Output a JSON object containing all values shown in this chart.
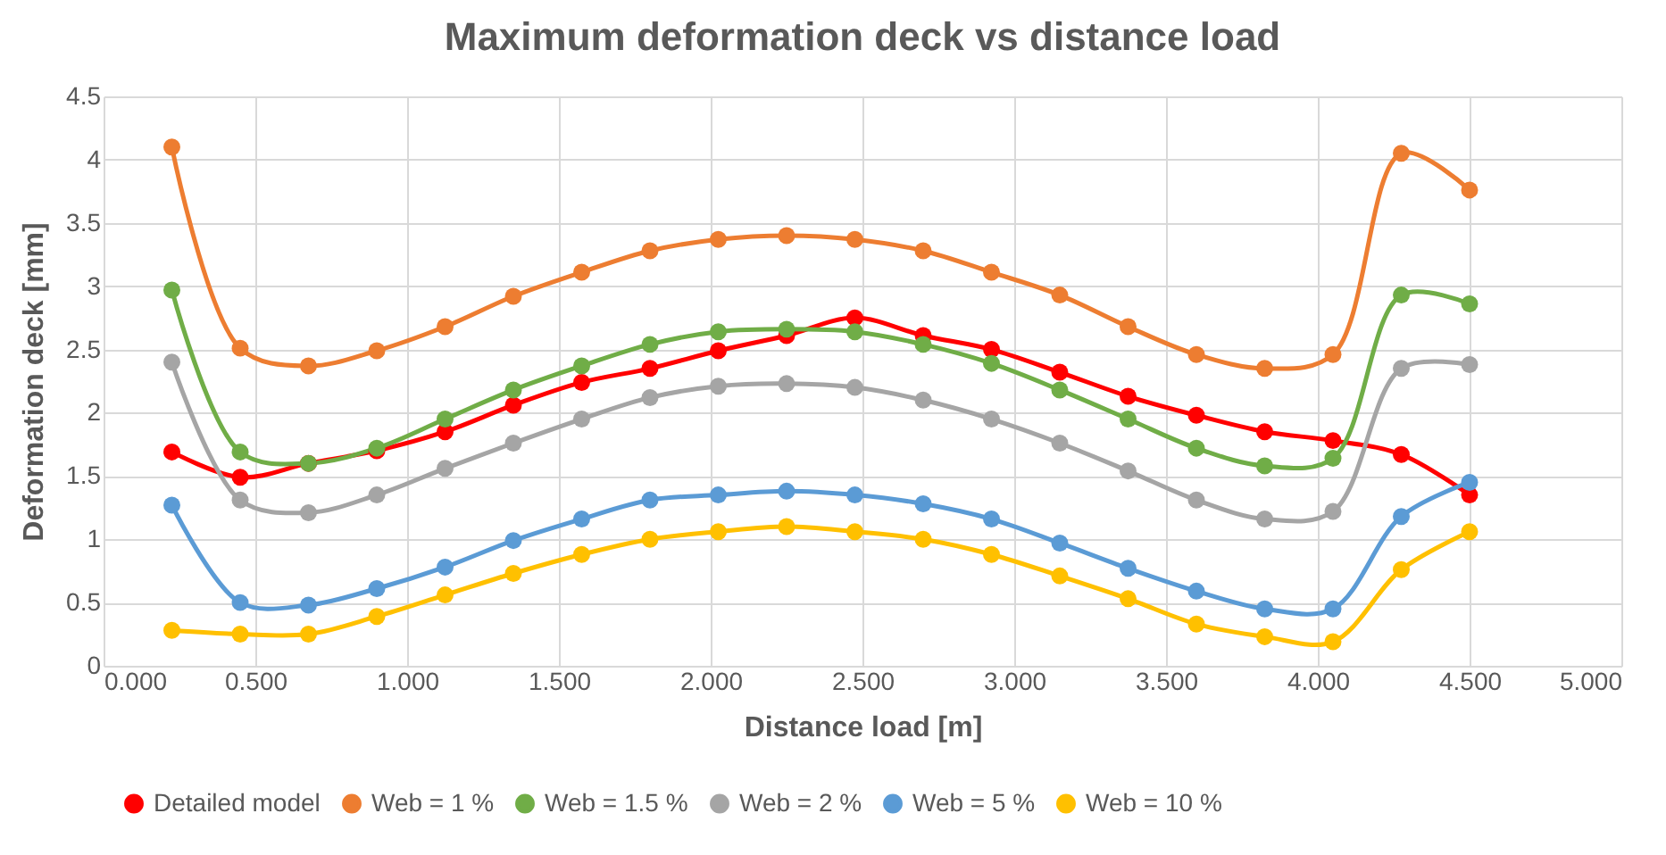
{
  "chart_data": {
    "type": "line",
    "title": "Maximum deformation deck vs distance load",
    "xlabel": "Distance load [m]",
    "ylabel": "Deformation deck [mm]",
    "x": [
      0.225,
      0.45,
      0.675,
      0.9,
      1.125,
      1.35,
      1.575,
      1.8,
      2.025,
      2.25,
      2.475,
      2.7,
      2.925,
      3.15,
      3.375,
      3.6,
      3.825,
      4.05,
      4.275,
      4.5
    ],
    "series": [
      {
        "name": "Detailed model",
        "color": "#ff0000",
        "values": [
          1.69,
          1.49,
          1.6,
          1.7,
          1.85,
          2.06,
          2.24,
          2.35,
          2.49,
          2.61,
          2.75,
          2.61,
          2.5,
          2.32,
          2.13,
          1.98,
          1.85,
          1.78,
          1.67,
          1.35
        ]
      },
      {
        "name": "Web = 1 %",
        "color": "#ed7d31",
        "values": [
          4.1,
          2.51,
          2.37,
          2.49,
          2.68,
          2.92,
          3.11,
          3.28,
          3.37,
          3.4,
          3.37,
          3.28,
          3.11,
          2.93,
          2.68,
          2.46,
          2.35,
          2.46,
          4.05,
          3.76
        ]
      },
      {
        "name": "Web = 1.5 %",
        "color": "#70ad47",
        "values": [
          2.97,
          1.69,
          1.6,
          1.72,
          1.95,
          2.18,
          2.37,
          2.54,
          2.64,
          2.66,
          2.64,
          2.54,
          2.39,
          2.18,
          1.95,
          1.72,
          1.58,
          1.64,
          2.93,
          2.86
        ]
      },
      {
        "name": "Web = 2 %",
        "color": "#a5a5a5",
        "values": [
          2.4,
          1.31,
          1.21,
          1.35,
          1.56,
          1.76,
          1.95,
          2.12,
          2.21,
          2.23,
          2.2,
          2.1,
          1.95,
          1.76,
          1.54,
          1.31,
          1.16,
          1.22,
          2.35,
          2.38
        ]
      },
      {
        "name": "Web = 5 %",
        "color": "#5b9bd5",
        "values": [
          1.27,
          0.5,
          0.48,
          0.61,
          0.78,
          0.99,
          1.16,
          1.31,
          1.35,
          1.38,
          1.35,
          1.28,
          1.16,
          0.97,
          0.77,
          0.59,
          0.45,
          0.45,
          1.18,
          1.45
        ]
      },
      {
        "name": "Web = 10 %",
        "color": "#ffc000",
        "values": [
          0.28,
          0.25,
          0.25,
          0.39,
          0.56,
          0.73,
          0.88,
          1.0,
          1.06,
          1.1,
          1.06,
          1.0,
          0.88,
          0.71,
          0.53,
          0.33,
          0.23,
          0.19,
          0.76,
          1.06
        ]
      }
    ],
    "xlim": [
      0,
      5
    ],
    "xticks": [
      {
        "value": 0,
        "label": "0.000"
      },
      {
        "value": 0.5,
        "label": "0.500"
      },
      {
        "value": 1,
        "label": "1.000"
      },
      {
        "value": 1.5,
        "label": "1.500"
      },
      {
        "value": 2,
        "label": "2.000"
      },
      {
        "value": 2.5,
        "label": "2.500"
      },
      {
        "value": 3,
        "label": "3.000"
      },
      {
        "value": 3.5,
        "label": "3.500"
      },
      {
        "value": 4,
        "label": "4.000"
      },
      {
        "value": 4.5,
        "label": "4.500"
      },
      {
        "value": 5,
        "label": "5.000"
      }
    ],
    "ylim": [
      0,
      4.5
    ],
    "yticks": [
      0,
      0.5,
      1,
      1.5,
      2,
      2.5,
      3,
      3.5,
      4,
      4.5
    ],
    "grid": true,
    "legend": "bottom",
    "marker": "circle",
    "line_style": "solid"
  }
}
